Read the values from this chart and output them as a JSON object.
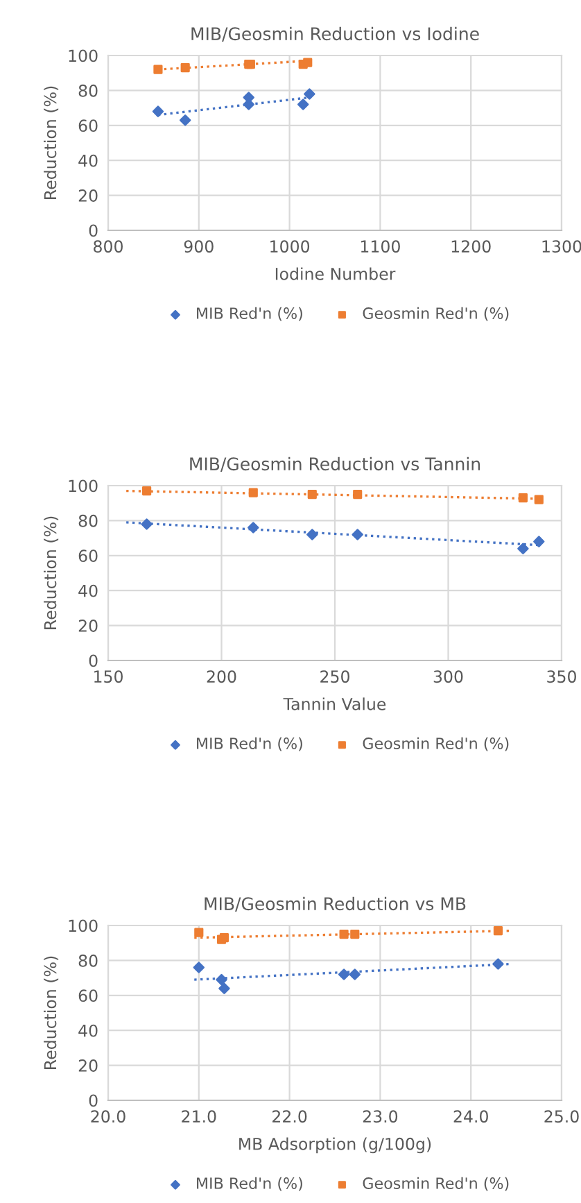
{
  "chart_data": [
    {
      "type": "scatter",
      "title": "MIB/Geosmin Reduction vs Iodine",
      "xlabel": "Iodine Number",
      "ylabel": "Reduction (%)",
      "xlim": [
        800,
        1300
      ],
      "xticks": [
        800,
        900,
        1000,
        1100,
        1200,
        1300
      ],
      "ylim": [
        0,
        100
      ],
      "yticks": [
        0,
        20,
        40,
        60,
        80,
        100
      ],
      "grid": true,
      "legend": "bottom",
      "series": [
        {
          "name": "MIB Red'n (%)",
          "color": "#4472c4",
          "marker": "diamond",
          "x": [
            855,
            885,
            955,
            955,
            1015,
            1022
          ],
          "values": [
            68,
            63,
            76,
            72,
            72,
            78
          ]
        },
        {
          "name": "Geosmin Red'n (%)",
          "color": "#ed7d31",
          "marker": "square",
          "x": [
            855,
            885,
            955,
            957,
            1015,
            1020
          ],
          "values": [
            92,
            93,
            95,
            95,
            95,
            96
          ]
        },
        {
          "type": "line",
          "color": "#4472c4",
          "line_style": "dotted",
          "x": [
            855,
            1022
          ],
          "values": [
            66,
            76
          ]
        },
        {
          "type": "line",
          "color": "#ed7d31",
          "line_style": "dotted",
          "x": [
            855,
            1022
          ],
          "values": [
            92,
            97
          ]
        }
      ]
    },
    {
      "type": "scatter",
      "title": "MIB/Geosmin Reduction vs Tannin",
      "xlabel": "Tannin Value",
      "ylabel": "Reduction (%)",
      "xlim": [
        150,
        350
      ],
      "xticks": [
        150,
        200,
        250,
        300,
        350
      ],
      "ylim": [
        0,
        100
      ],
      "yticks": [
        0,
        20,
        40,
        60,
        80,
        100
      ],
      "grid": true,
      "legend": "bottom",
      "series": [
        {
          "name": "MIB Red'n (%)",
          "color": "#4472c4",
          "marker": "diamond",
          "x": [
            167,
            214,
            240,
            260,
            333,
            340
          ],
          "values": [
            78,
            76,
            72,
            72,
            64,
            68
          ]
        },
        {
          "name": "Geosmin Red'n (%)",
          "color": "#ed7d31",
          "marker": "square",
          "x": [
            167,
            214,
            240,
            260,
            333,
            340
          ],
          "values": [
            97,
            96,
            95,
            95,
            93,
            92
          ]
        },
        {
          "type": "line",
          "color": "#4472c4",
          "line_style": "dotted",
          "x": [
            158,
            340
          ],
          "values": [
            79,
            66
          ]
        },
        {
          "type": "line",
          "color": "#ed7d31",
          "line_style": "dotted",
          "x": [
            158,
            340
          ],
          "values": [
            97,
            92.5
          ]
        }
      ]
    },
    {
      "type": "scatter",
      "title": "MIB/Geosmin Reduction vs MB",
      "xlabel": "MB Adsorption (g/100g)",
      "ylabel": "Reduction (%)",
      "xlim": [
        20.0,
        25.0
      ],
      "xticks": [
        {
          "value": 20,
          "label": "20.0"
        },
        {
          "value": 21,
          "label": "21.0"
        },
        {
          "value": 22,
          "label": "22.0"
        },
        {
          "value": 23,
          "label": "23.0"
        },
        {
          "value": 24,
          "label": "24.0"
        },
        {
          "value": 25,
          "label": "25.0"
        }
      ],
      "ylim": [
        0,
        100
      ],
      "yticks": [
        0,
        20,
        40,
        60,
        80,
        100
      ],
      "grid": true,
      "legend": "bottom",
      "series": [
        {
          "name": "MIB Red'n (%)",
          "color": "#4472c4",
          "marker": "diamond",
          "x": [
            21.0,
            21.25,
            21.28,
            22.6,
            22.72,
            24.3
          ],
          "values": [
            76,
            69,
            64,
            72,
            72,
            78
          ]
        },
        {
          "name": "Geosmin Red'n (%)",
          "color": "#ed7d31",
          "marker": "square",
          "x": [
            21.0,
            21.25,
            21.28,
            22.6,
            22.72,
            24.3
          ],
          "values": [
            96,
            92,
            93,
            95,
            95,
            97
          ]
        },
        {
          "type": "line",
          "color": "#4472c4",
          "line_style": "dotted",
          "x": [
            20.95,
            24.45
          ],
          "values": [
            69,
            78
          ]
        },
        {
          "type": "line",
          "color": "#ed7d31",
          "line_style": "dotted",
          "x": [
            20.95,
            24.45
          ],
          "values": [
            93,
            97
          ]
        }
      ]
    }
  ]
}
